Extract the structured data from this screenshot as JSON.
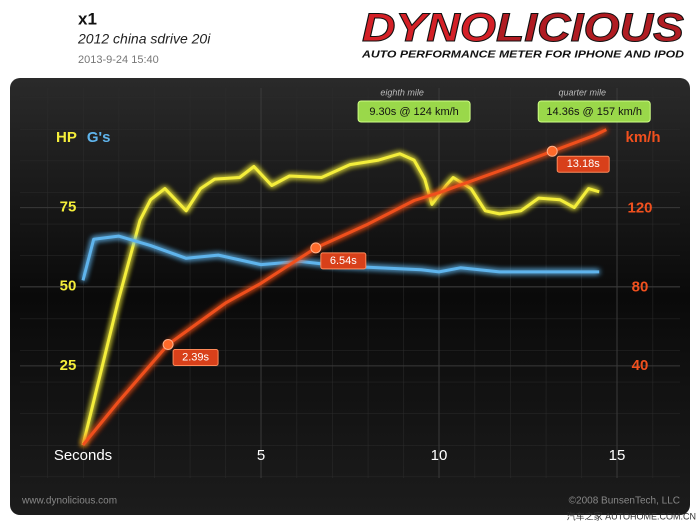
{
  "chart_data": {
    "type": "line",
    "title": "x1",
    "subtitle": "2012 china sdrive 20i",
    "date": "2013-9-24 15:40",
    "logo": {
      "part1": "DYNO",
      "part2": "LICIOUS",
      "tagline": "AUTO PERFORMANCE METER FOR IPHONE AND IPOD"
    },
    "x_label": "Seconds",
    "xlim": [
      0,
      15
    ],
    "xticks": [
      5,
      10,
      15
    ],
    "ylim": [
      0,
      109
    ],
    "yticks": [
      25,
      50,
      75
    ],
    "y2lim": [
      0,
      175
    ],
    "y2ticks": [
      40,
      80,
      120
    ],
    "grid": true,
    "series": [
      {
        "name": "HP",
        "color": "#f4ee3a",
        "axis": "y",
        "x": [
          0,
          1.0,
          1.6,
          1.9,
          2.3,
          2.9,
          3.3,
          3.7,
          4.4,
          4.8,
          5.3,
          5.8,
          6.7,
          7.5,
          8.3,
          8.9,
          9.3,
          9.6,
          9.8,
          10.2,
          10.4,
          10.9,
          11.3,
          11.7,
          12.3,
          12.8,
          13.4,
          13.8,
          14.2,
          14.5
        ],
        "values": [
          0,
          46,
          71,
          77.5,
          81,
          74,
          81,
          84,
          84.5,
          88,
          82,
          85,
          84.5,
          88.6,
          90,
          92,
          90,
          84,
          76,
          82,
          84.5,
          81,
          74,
          73,
          74,
          78,
          77.5,
          75,
          81,
          80
        ]
      },
      {
        "name": "G's",
        "color": "#5fb4ec",
        "axis": "y",
        "x": [
          0,
          0.3,
          1.0,
          1.9,
          2.9,
          3.8,
          5.0,
          6.1,
          7.2,
          8.3,
          9.5,
          10.0,
          10.6,
          11.7,
          13.1,
          14.5
        ],
        "values": [
          52,
          65,
          66,
          63,
          59,
          60,
          57,
          58,
          56.6,
          56,
          55.4,
          54.7,
          56,
          54.7,
          54.7,
          54.7
        ]
      },
      {
        "name": "km/h",
        "color": "#f0501e",
        "axis": "y2",
        "x": [
          0,
          1,
          2.39,
          4,
          5,
          6.54,
          8,
          9.3,
          10,
          12,
          13.18,
          14.36,
          14.7
        ],
        "values": [
          0,
          22,
          51,
          72,
          82,
          100,
          112,
          124,
          128,
          141,
          149,
          157,
          160
        ]
      }
    ],
    "markers": [
      {
        "value": 2.39,
        "label": "2.39s"
      },
      {
        "value": 6.54,
        "label": "6.54s"
      },
      {
        "value": 13.18,
        "label": "13.18s"
      }
    ],
    "milestones": [
      {
        "name": "eighth mile",
        "time": 9.3,
        "speed": 124,
        "label": "9.30s @ 124 km/h"
      },
      {
        "name": "quarter mile",
        "time": 14.36,
        "speed": 157,
        "label": "14.36s @ 157 km/h"
      }
    ],
    "footer_left": "www.dynolicious.com",
    "footer_right": "©2008 BunsenTech, LLC",
    "watermark": "汽车之家 AUTOHOME.COM.CN"
  }
}
